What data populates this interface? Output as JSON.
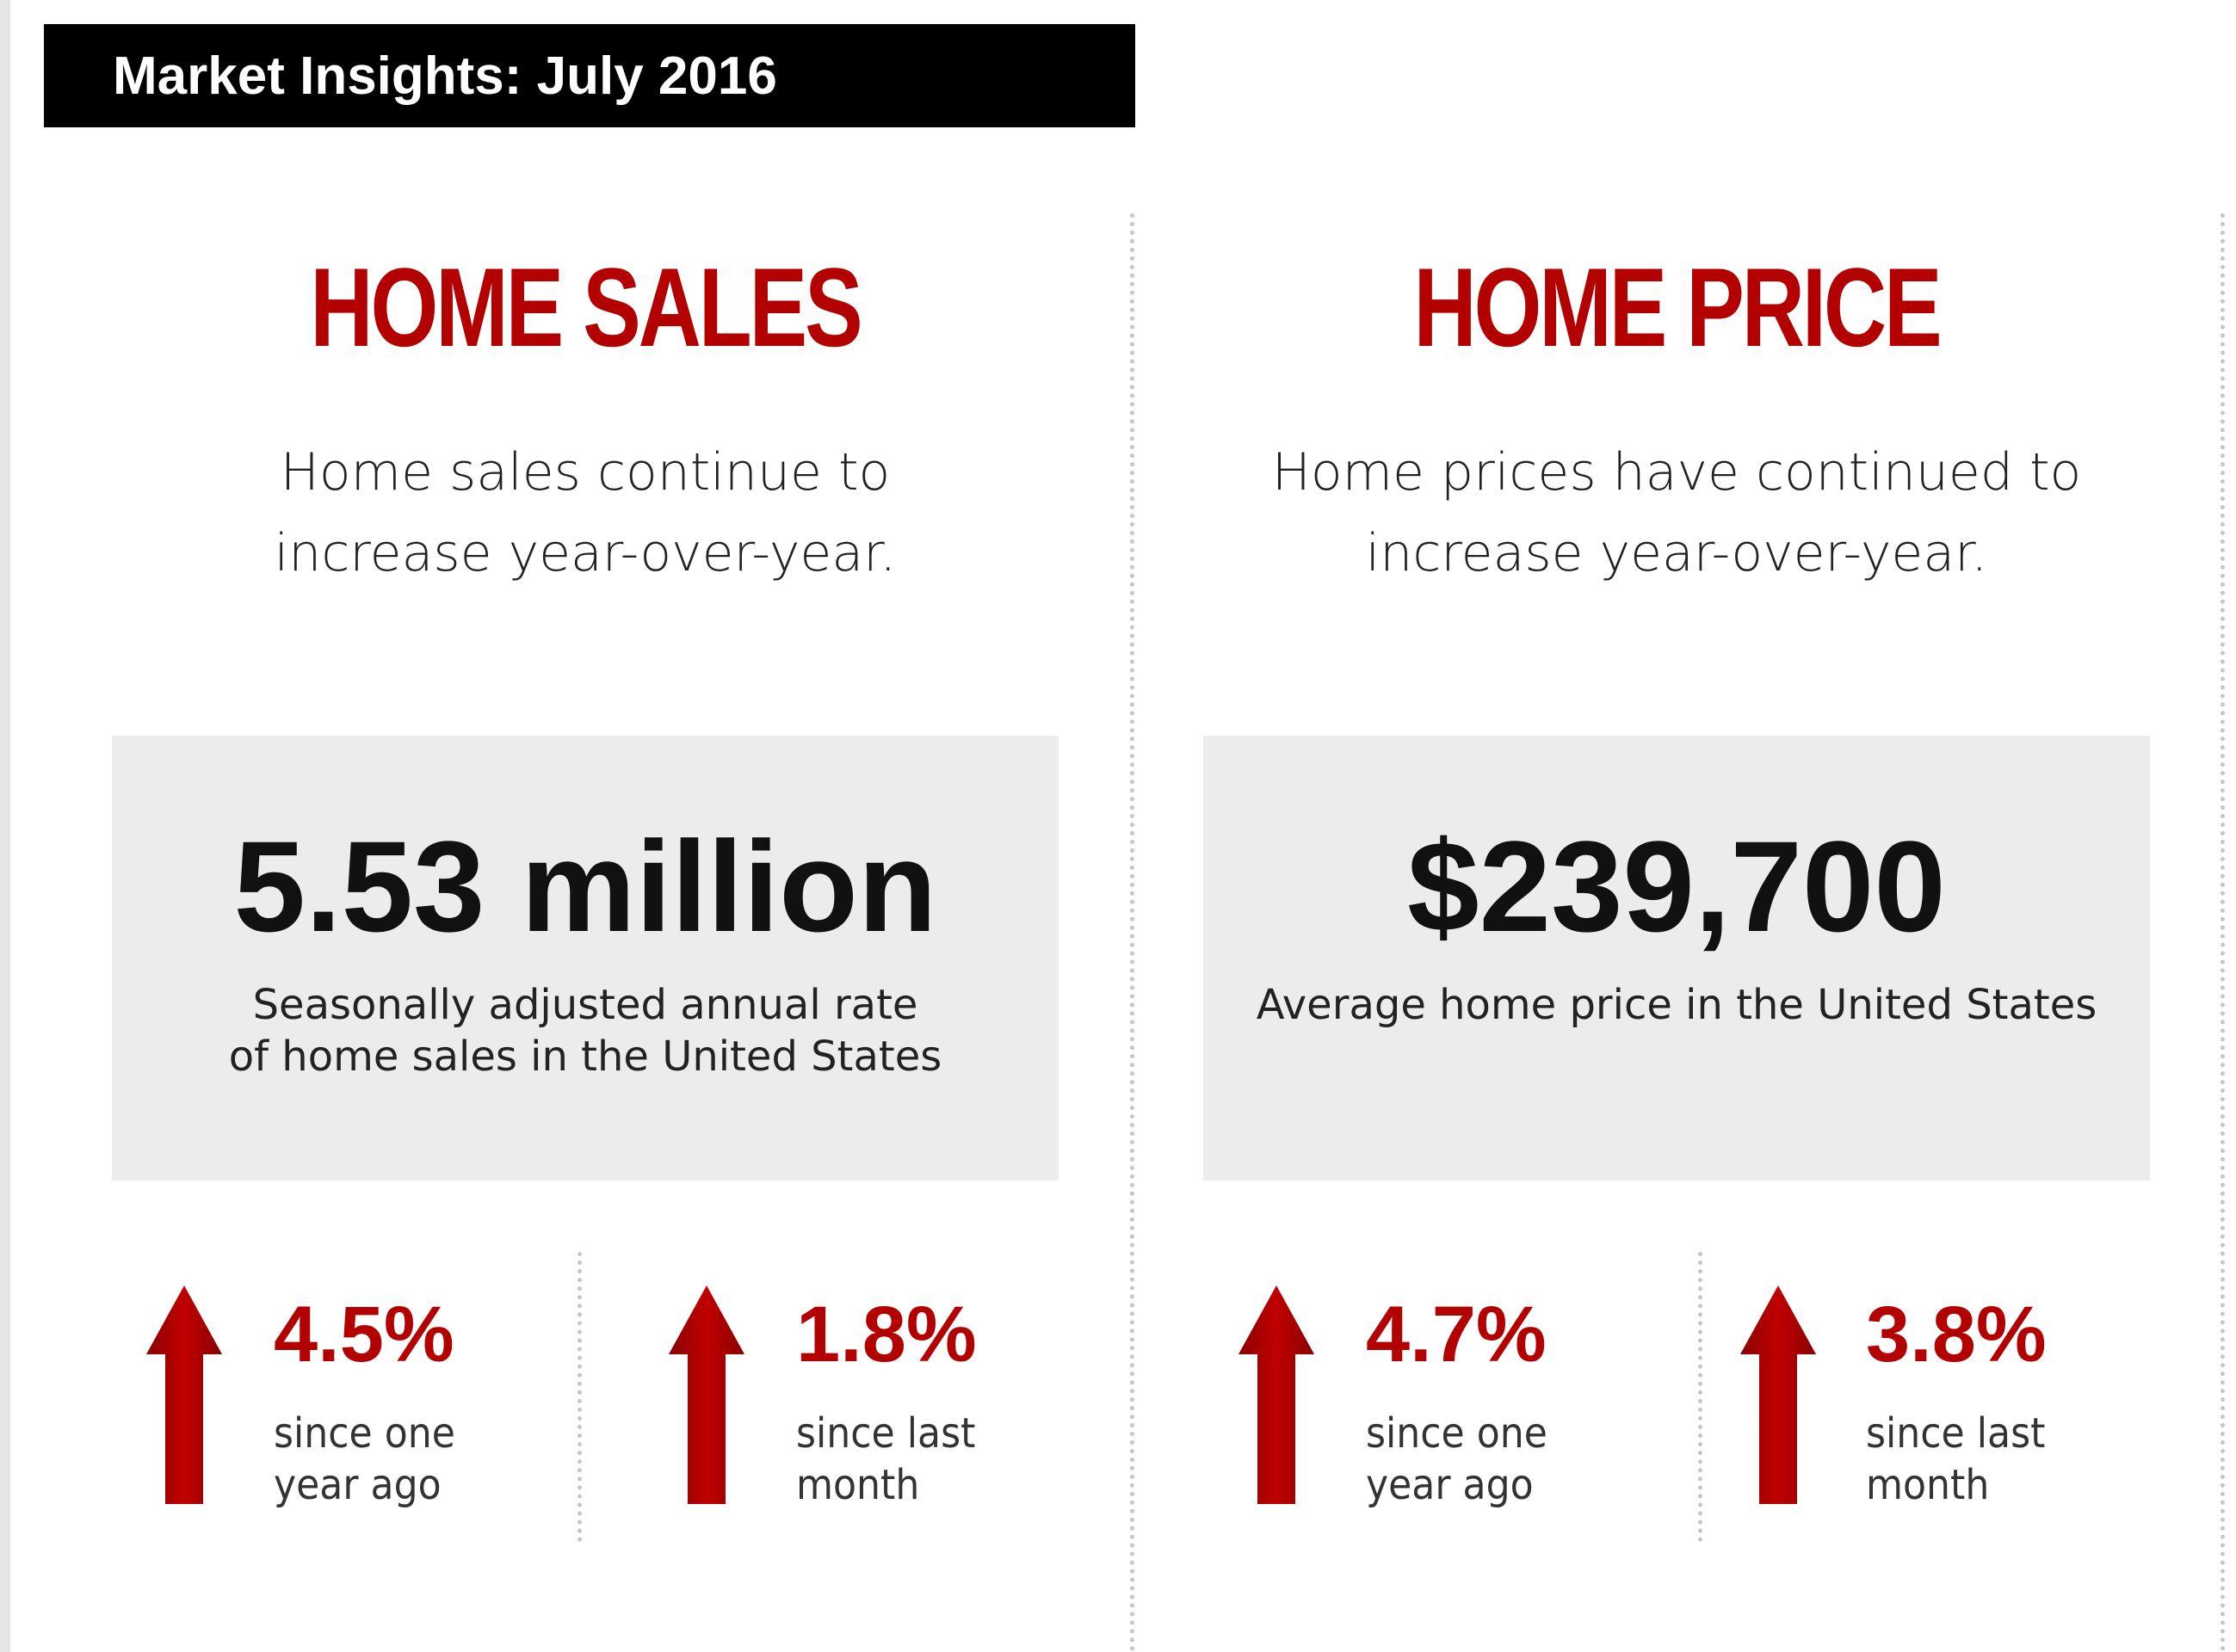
{
  "banner": {
    "title": "Market Insights: July 2016"
  },
  "panels": [
    {
      "heading": "HOME SALES",
      "description": "Home sales continue to increase year-over-year.",
      "stat_value": "5.53 million",
      "stat_caption": "Seasonally adjusted annual rate\nof home sales in the United States",
      "changes": [
        {
          "percent": "4.5%",
          "label": "since one year ago",
          "direction": "up"
        },
        {
          "percent": "1.8%",
          "label": "since last month",
          "direction": "up"
        }
      ]
    },
    {
      "heading": "HOME PRICE",
      "description": "Home prices have continued to increase year-over-year.",
      "stat_value": "$239,700",
      "stat_caption": "Average home price in the United States",
      "changes": [
        {
          "percent": "4.7%",
          "label": "since one year ago",
          "direction": "up"
        },
        {
          "percent": "3.8%",
          "label": "since last month",
          "direction": "up"
        }
      ]
    }
  ],
  "colors": {
    "accent": "#b30000",
    "banner_bg": "#000000",
    "box_bg": "#ececec",
    "divider": "#c6c6c6"
  },
  "icons": {
    "change_arrow": "up-arrow-icon"
  }
}
